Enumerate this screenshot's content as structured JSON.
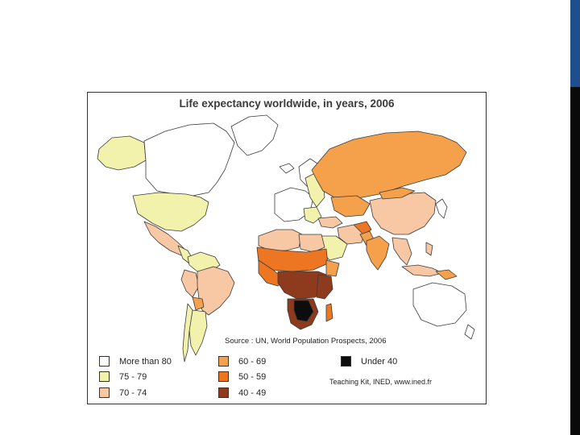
{
  "title": "Life expectancy worldwide, in years, 2006",
  "source": "Source : UN, World Population Prospects, 2006",
  "credit": "Teaching Kit, INED, www.ined.fr",
  "colors": {
    "over80": "#ffffff",
    "c75_79": "#f3f2ac",
    "c70_74": "#f8c8a4",
    "c60_69": "#f5a04a",
    "c50_59": "#ec7622",
    "c40_49": "#8e3a1c",
    "under40": "#0d0d0d"
  },
  "legend": [
    {
      "label": "More than 80",
      "color": "#ffffff"
    },
    {
      "label": "75 - 79",
      "color": "#f3f2ac"
    },
    {
      "label": "70 - 74",
      "color": "#f8c8a4"
    },
    {
      "label": "60 - 69",
      "color": "#f5a04a"
    },
    {
      "label": "50 - 59",
      "color": "#ec7622"
    },
    {
      "label": "40 - 49",
      "color": "#8e3a1c"
    },
    {
      "label": "Under 40",
      "color": "#0d0d0d"
    }
  ]
}
